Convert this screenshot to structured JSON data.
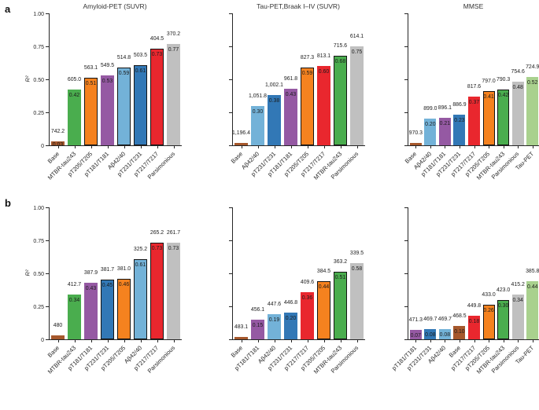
{
  "figure": {
    "panels": [
      "a",
      "b"
    ],
    "ylabel": "R²",
    "ytick_labels": [
      "0",
      "0.25",
      "0.50",
      "0.75",
      "1.00"
    ],
    "ytick_values": [
      0,
      0.25,
      0.5,
      0.75,
      1
    ]
  },
  "colors": {
    "base": "#a6582c",
    "mtbr": "#4aad4e",
    "pt205": "#f5821f",
    "pt181": "#9559a3",
    "ab4240": "#73b2d8",
    "pt231": "#3278b6",
    "pt217": "#e9272e",
    "parsimonious": "#c0c0c0",
    "taupet": "#a9d18e"
  },
  "chart_data": [
    {
      "type": "bar",
      "row": "a",
      "col": 1,
      "title": "Amyloid-PET (SUVR)",
      "xlabel": "",
      "ylabel": "R²",
      "ylim": [
        0,
        1
      ],
      "bars": [
        {
          "label": "Base",
          "aic": "742.2",
          "r2": 0.03,
          "r2_label": "0.03",
          "color": "base",
          "outlined": false
        },
        {
          "label": "MTBR-tau243",
          "aic": "605.0",
          "r2": 0.42,
          "r2_label": "0.42",
          "color": "mtbr",
          "outlined": false
        },
        {
          "label": "pT205/T205",
          "aic": "563.1",
          "r2": 0.51,
          "r2_label": "0.51",
          "color": "pt205",
          "outlined": true
        },
        {
          "label": "pT181/T181",
          "aic": "549.5",
          "r2": 0.53,
          "r2_label": "0.53",
          "color": "pt181",
          "outlined": false
        },
        {
          "label": "Aβ42/40",
          "aic": "514.8",
          "r2": 0.59,
          "r2_label": "0.59",
          "color": "ab4240",
          "outlined": true
        },
        {
          "label": "pT231/T231",
          "aic": "503.5",
          "r2": 0.61,
          "r2_label": "0.61",
          "color": "pt231",
          "outlined": true
        },
        {
          "label": "pT217/T217",
          "aic": "404.5",
          "r2": 0.73,
          "r2_label": "0.73",
          "color": "pt217",
          "outlined": true
        },
        {
          "label": "Parsimonious",
          "aic": "370.2",
          "r2": 0.77,
          "r2_label": "0.77",
          "color": "parsimonious",
          "outlined": false
        }
      ]
    },
    {
      "type": "bar",
      "row": "a",
      "col": 2,
      "title": "Tau-PET,Braak I–IV (SUVR)",
      "xlabel": "",
      "ylabel": "R²",
      "ylim": [
        0,
        1
      ],
      "bars": [
        {
          "label": "Base",
          "aic": "1,196.4",
          "r2": 0.02,
          "r2_label": "",
          "color": "base",
          "outlined": false
        },
        {
          "label": "Aβ42/40",
          "aic": "1,051.8",
          "r2": 0.3,
          "r2_label": "0.30",
          "color": "ab4240",
          "outlined": false
        },
        {
          "label": "pT231/T231",
          "aic": "1,002.1",
          "r2": 0.38,
          "r2_label": "0.38",
          "color": "pt231",
          "outlined": false
        },
        {
          "label": "pT181/T181",
          "aic": "961.8",
          "r2": 0.43,
          "r2_label": "0.43",
          "color": "pt181",
          "outlined": false
        },
        {
          "label": "pT205/T205",
          "aic": "827.3",
          "r2": 0.59,
          "r2_label": "0.59",
          "color": "pt205",
          "outlined": true
        },
        {
          "label": "pT217/T217",
          "aic": "813.1",
          "r2": 0.6,
          "r2_label": "0.60",
          "color": "pt217",
          "outlined": false
        },
        {
          "label": "MTBR-tau243",
          "aic": "715.6",
          "r2": 0.68,
          "r2_label": "0.68",
          "color": "mtbr",
          "outlined": true
        },
        {
          "label": "Parsimonious",
          "aic": "614.1",
          "r2": 0.75,
          "r2_label": "0.75",
          "color": "parsimonious",
          "outlined": false
        }
      ]
    },
    {
      "type": "bar",
      "row": "a",
      "col": 3,
      "title": "MMSE",
      "xlabel": "",
      "ylabel": "R²",
      "ylim": [
        0,
        1
      ],
      "bars": [
        {
          "label": "Base",
          "aic": "970.3",
          "r2": 0.02,
          "r2_label": "",
          "color": "base",
          "outlined": false
        },
        {
          "label": "Aβ42/40",
          "aic": "899.0",
          "r2": 0.2,
          "r2_label": "0.20",
          "color": "ab4240",
          "outlined": false
        },
        {
          "label": "pT181/T181",
          "aic": "896.1",
          "r2": 0.21,
          "r2_label": "0.21",
          "color": "pt181",
          "outlined": false
        },
        {
          "label": "pT231/T231",
          "aic": "886.9",
          "r2": 0.23,
          "r2_label": "0.23",
          "color": "pt231",
          "outlined": false
        },
        {
          "label": "pT217/T217",
          "aic": "817.6",
          "r2": 0.37,
          "r2_label": "0.37",
          "color": "pt217",
          "outlined": false
        },
        {
          "label": "pT205/T205",
          "aic": "797.0",
          "r2": 0.41,
          "r2_label": "0.41",
          "color": "pt205",
          "outlined": true
        },
        {
          "label": "MTBR-tau243",
          "aic": "790.3",
          "r2": 0.42,
          "r2_label": "0.42",
          "color": "mtbr",
          "outlined": true
        },
        {
          "label": "Parsimonious",
          "aic": "754.6",
          "r2": 0.48,
          "r2_label": "0.48",
          "color": "parsimonious",
          "outlined": false
        },
        {
          "label": "Tau-PET",
          "aic": "724.9",
          "r2": 0.52,
          "r2_label": "0.52",
          "color": "taupet",
          "outlined": false
        }
      ]
    },
    {
      "type": "bar",
      "row": "b",
      "col": 1,
      "title": "",
      "xlabel": "",
      "ylabel": "R²",
      "ylim": [
        0,
        1
      ],
      "bars": [
        {
          "label": "Base",
          "aic": "480",
          "r2": 0.03,
          "r2_label": "",
          "color": "base",
          "outlined": false
        },
        {
          "label": "MTBR-tau243",
          "aic": "412.7",
          "r2": 0.34,
          "r2_label": "0.34",
          "color": "mtbr",
          "outlined": false
        },
        {
          "label": "pT181/T181",
          "aic": "387.9",
          "r2": 0.43,
          "r2_label": "0.43",
          "color": "pt181",
          "outlined": false
        },
        {
          "label": "pT231/T231",
          "aic": "381.7",
          "r2": 0.45,
          "r2_label": "0.45",
          "color": "pt231",
          "outlined": true
        },
        {
          "label": "pT205/T205",
          "aic": "381.0",
          "r2": 0.46,
          "r2_label": "0.46",
          "color": "pt205",
          "outlined": true
        },
        {
          "label": "Aβ42/40",
          "aic": "325.2",
          "r2": 0.61,
          "r2_label": "0.61",
          "color": "ab4240",
          "outlined": true
        },
        {
          "label": "pT217/T217",
          "aic": "265.2",
          "r2": 0.73,
          "r2_label": "0.73",
          "color": "pt217",
          "outlined": true
        },
        {
          "label": "Parsimonious",
          "aic": "261.7",
          "r2": 0.73,
          "r2_label": "0.73",
          "color": "parsimonious",
          "outlined": false
        }
      ]
    },
    {
      "type": "bar",
      "row": "b",
      "col": 2,
      "title": "",
      "xlabel": "",
      "ylabel": "R²",
      "ylim": [
        0,
        1
      ],
      "bars": [
        {
          "label": "Base",
          "aic": "483.1",
          "r2": 0.02,
          "r2_label": "",
          "color": "base",
          "outlined": false
        },
        {
          "label": "pT181/T181",
          "aic": "456.1",
          "r2": 0.15,
          "r2_label": "0.15",
          "color": "pt181",
          "outlined": false
        },
        {
          "label": "Aβ42/40",
          "aic": "447.6",
          "r2": 0.19,
          "r2_label": "0.19",
          "color": "ab4240",
          "outlined": false
        },
        {
          "label": "pT231/T231",
          "aic": "446.8",
          "r2": 0.2,
          "r2_label": "0.20",
          "color": "pt231",
          "outlined": false
        },
        {
          "label": "pT217/T217",
          "aic": "409.6",
          "r2": 0.36,
          "r2_label": "0.36",
          "color": "pt217",
          "outlined": false
        },
        {
          "label": "pT205/T205",
          "aic": "384.5",
          "r2": 0.44,
          "r2_label": "0.44",
          "color": "pt205",
          "outlined": true
        },
        {
          "label": "MTBR-tau243",
          "aic": "363.2",
          "r2": 0.51,
          "r2_label": "0.51",
          "color": "mtbr",
          "outlined": true
        },
        {
          "label": "Parsimonious",
          "aic": "339.5",
          "r2": 0.58,
          "r2_label": "0.58",
          "color": "parsimonious",
          "outlined": false
        }
      ]
    },
    {
      "type": "bar",
      "row": "b",
      "col": 3,
      "title": "",
      "xlabel": "",
      "ylabel": "R²",
      "ylim": [
        0,
        1
      ],
      "bars": [
        {
          "label": "pT181/T181",
          "aic": "471.3",
          "r2": 0.07,
          "r2_label": "0.07",
          "color": "pt181",
          "outlined": false
        },
        {
          "label": "pT231/T231",
          "aic": "469.7",
          "r2": 0.08,
          "r2_label": "0.08",
          "color": "pt231",
          "outlined": false
        },
        {
          "label": "Aβ42/40",
          "aic": "469.7",
          "r2": 0.08,
          "r2_label": "0.08",
          "color": "ab4240",
          "outlined": false
        },
        {
          "label": "Base",
          "aic": "468.5",
          "r2": 0.1,
          "r2_label": "0.10",
          "color": "base",
          "outlined": false
        },
        {
          "label": "pT217/T217",
          "aic": "449.8",
          "r2": 0.18,
          "r2_label": "0.18",
          "color": "pt217",
          "outlined": false
        },
        {
          "label": "pT205/T205",
          "aic": "433.0",
          "r2": 0.26,
          "r2_label": "0.26",
          "color": "pt205",
          "outlined": true
        },
        {
          "label": "MTBR-tau243",
          "aic": "423.0",
          "r2": 0.3,
          "r2_label": "0.30",
          "color": "mtbr",
          "outlined": true
        },
        {
          "label": "Parsimonious",
          "aic": "415.2",
          "r2": 0.34,
          "r2_label": "0.34",
          "color": "parsimonious",
          "outlined": false
        },
        {
          "label": "Tau-PET",
          "aic": "385.8",
          "r2": 0.44,
          "r2_label": "0.44",
          "color": "taupet",
          "outlined": false
        }
      ]
    }
  ]
}
